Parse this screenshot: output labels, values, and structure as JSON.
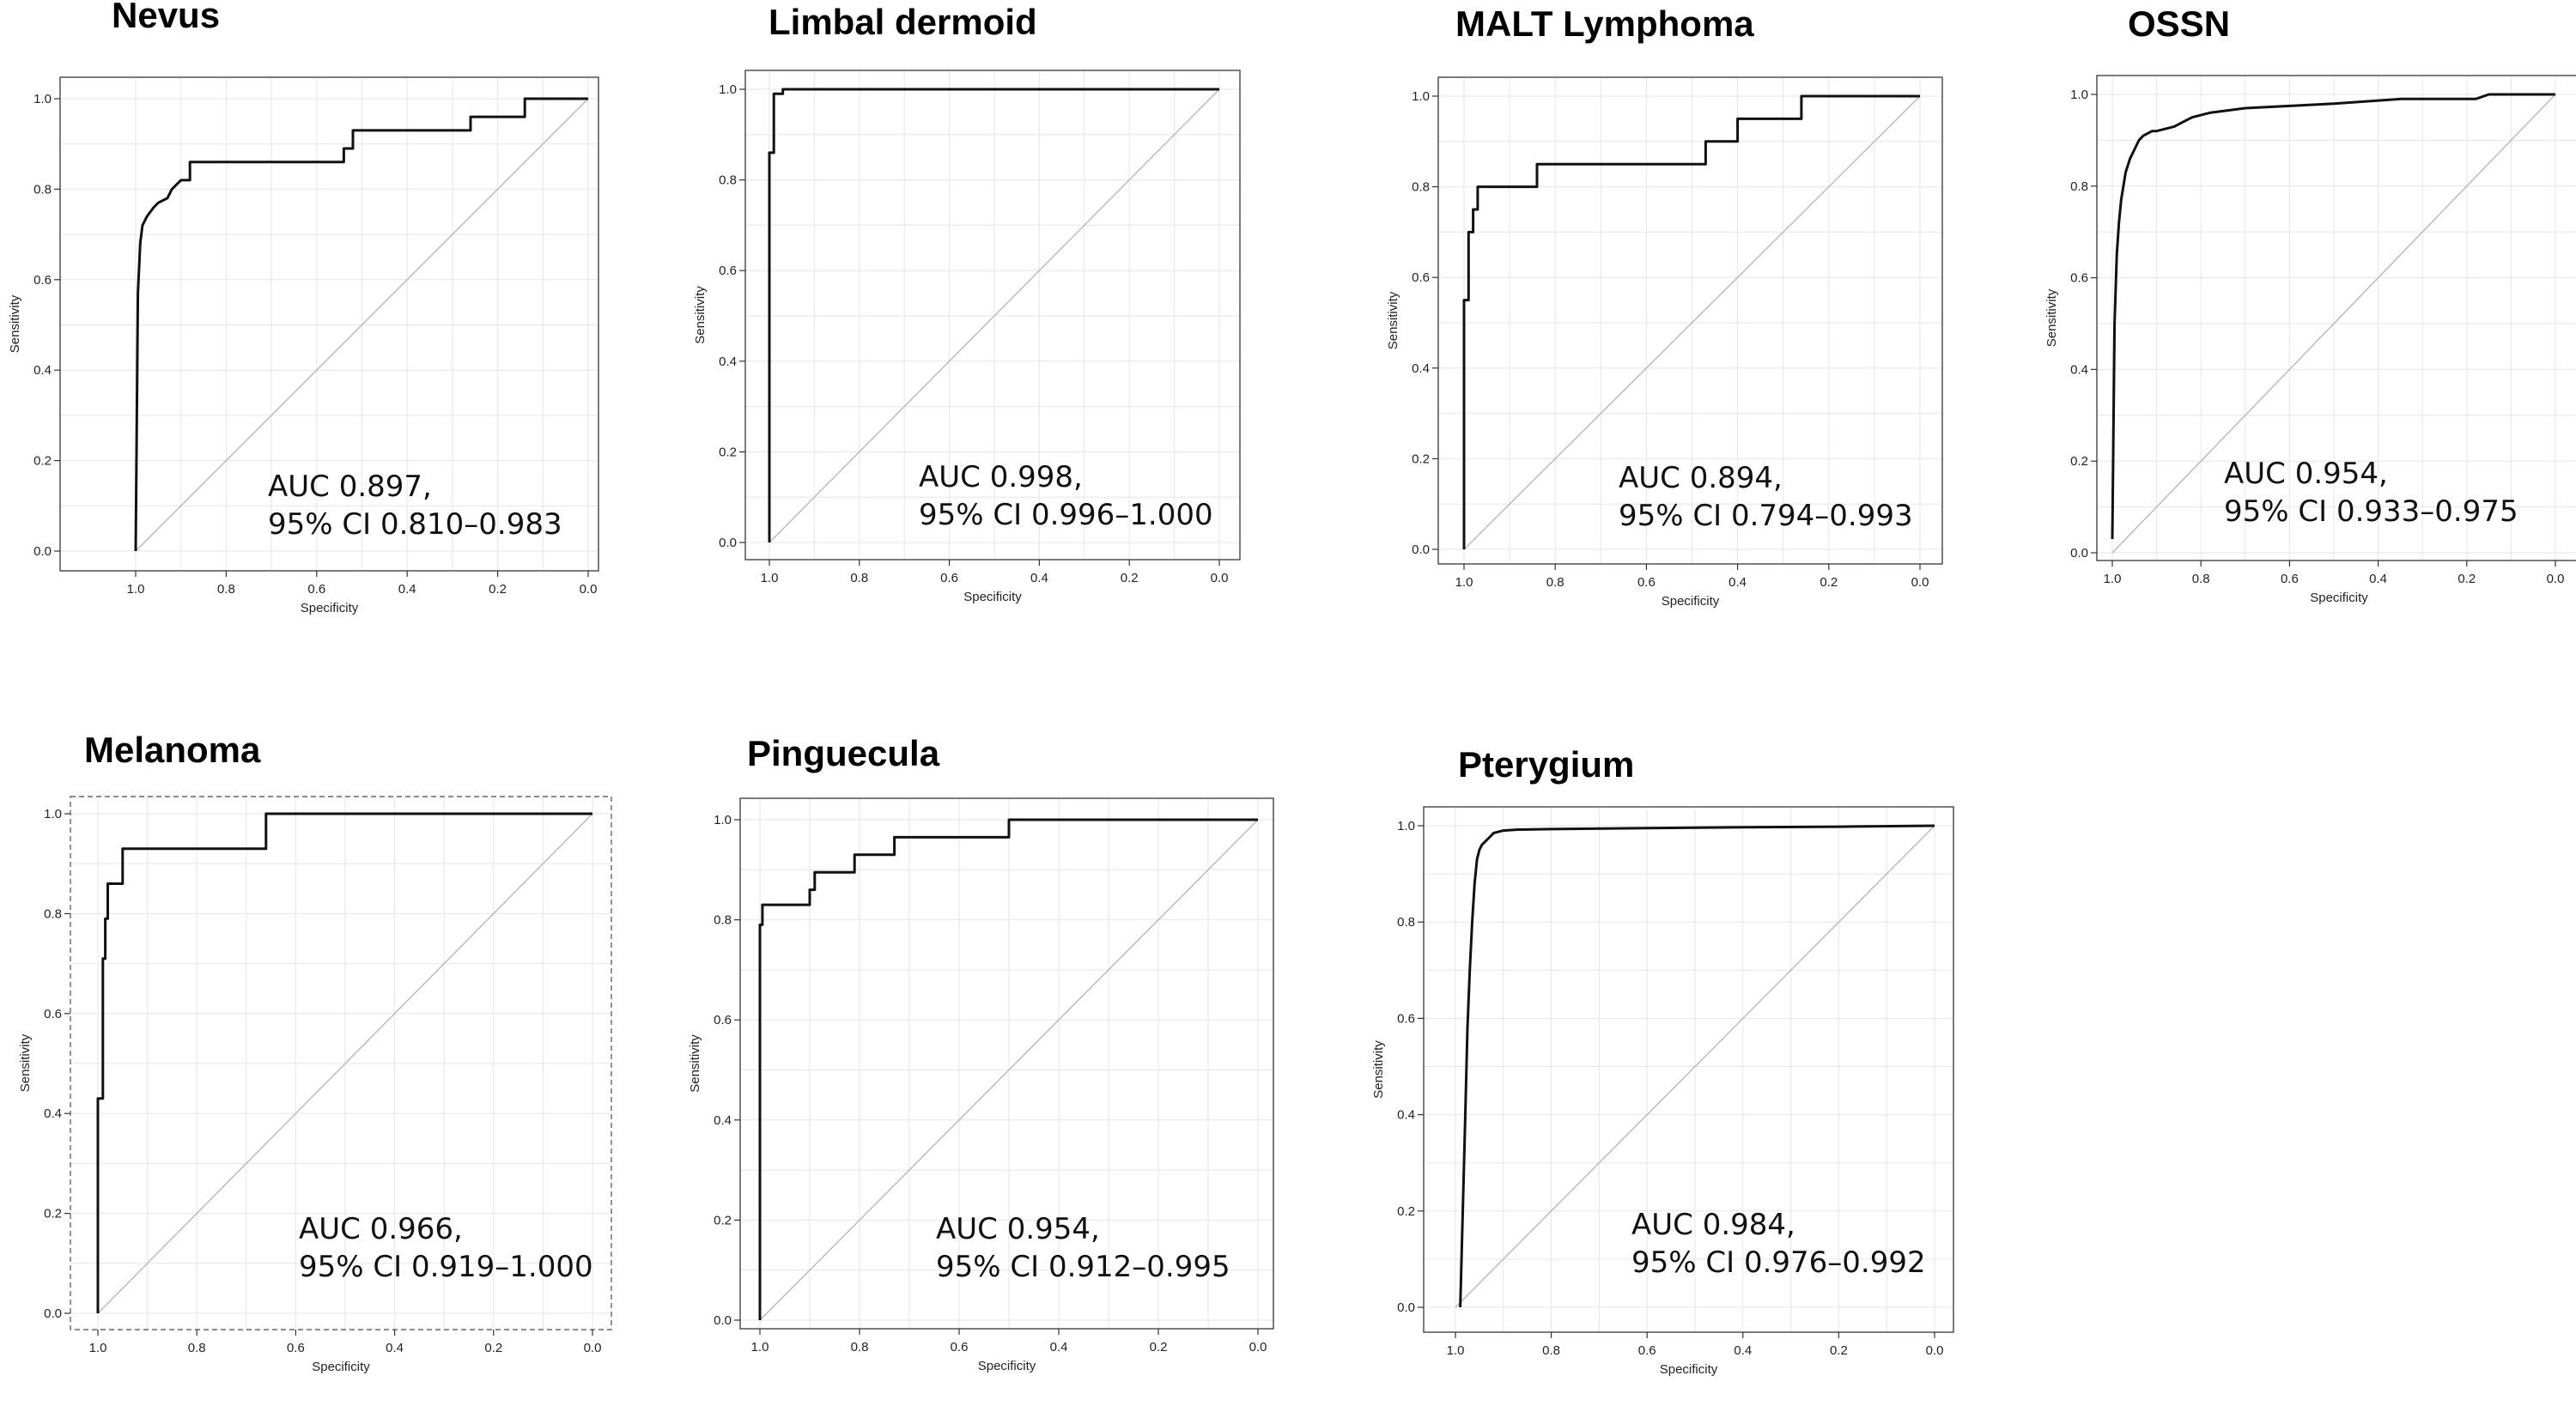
{
  "chart_data": [
    {
      "type": "line",
      "title": "Nevus",
      "xlabel": "Specificity",
      "ylabel": "Sensitivity",
      "xlim": [
        1.0,
        0.0
      ],
      "ylim": [
        0.0,
        1.0
      ],
      "x_ticks": [
        "1.0",
        "0.8",
        "0.6",
        "0.4",
        "0.2",
        "0.0"
      ],
      "y_ticks": [
        "0.0",
        "0.2",
        "0.4",
        "0.6",
        "0.8",
        "1.0"
      ],
      "annotation": [
        "AUC 0.897,",
        "95% CI 0.810–0.983"
      ],
      "grid": true,
      "series": [
        {
          "x": [
            1.0,
            0.995,
            0.99,
            0.985,
            0.975,
            0.96,
            0.95,
            0.93,
            0.92,
            0.9,
            0.88,
            0.88,
            0.54,
            0.54,
            0.52,
            0.52,
            0.26,
            0.26,
            0.14,
            0.14,
            0.0
          ],
          "y": [
            0.0,
            0.57,
            0.68,
            0.72,
            0.74,
            0.76,
            0.77,
            0.78,
            0.8,
            0.82,
            0.82,
            0.86,
            0.86,
            0.89,
            0.89,
            0.93,
            0.93,
            0.96,
            0.96,
            1.0,
            1.0
          ]
        }
      ],
      "diagonal": [
        [
          1.0,
          0.0
        ],
        [
          0.0,
          1.0
        ]
      ]
    },
    {
      "type": "line",
      "title": "Limbal dermoid",
      "xlabel": "Specificity",
      "ylabel": "Sensitivity",
      "xlim": [
        1.0,
        0.0
      ],
      "ylim": [
        0.0,
        1.0
      ],
      "x_ticks": [
        "1.0",
        "0.8",
        "0.6",
        "0.4",
        "0.2",
        "0.0"
      ],
      "y_ticks": [
        "0.0",
        "0.2",
        "0.4",
        "0.6",
        "0.8",
        "1.0"
      ],
      "annotation": [
        "AUC 0.998,",
        "95% CI 0.996–1.000"
      ],
      "grid": true,
      "series": [
        {
          "x": [
            1.0,
            1.0,
            0.99,
            0.99,
            0.97,
            0.97,
            0.0
          ],
          "y": [
            0.0,
            0.86,
            0.86,
            0.99,
            0.99,
            1.0,
            1.0
          ]
        }
      ],
      "diagonal": [
        [
          1.0,
          0.0
        ],
        [
          0.0,
          1.0
        ]
      ]
    },
    {
      "type": "line",
      "title": "MALT Lymphoma",
      "xlabel": "Specificity",
      "ylabel": "Sensitivity",
      "xlim": [
        1.0,
        0.0
      ],
      "ylim": [
        0.0,
        1.0
      ],
      "x_ticks": [
        "1.0",
        "0.8",
        "0.6",
        "0.4",
        "0.2",
        "0.0"
      ],
      "y_ticks": [
        "0.0",
        "0.2",
        "0.4",
        "0.6",
        "0.8",
        "1.0"
      ],
      "annotation": [
        "AUC 0.894,",
        "95% CI 0.794–0.993"
      ],
      "grid": true,
      "series": [
        {
          "x": [
            1.0,
            1.0,
            0.99,
            0.99,
            0.98,
            0.98,
            0.97,
            0.97,
            0.84,
            0.84,
            0.47,
            0.47,
            0.4,
            0.4,
            0.26,
            0.26,
            0.0
          ],
          "y": [
            0.0,
            0.55,
            0.55,
            0.7,
            0.7,
            0.75,
            0.75,
            0.8,
            0.8,
            0.85,
            0.85,
            0.9,
            0.9,
            0.95,
            0.95,
            1.0,
            1.0
          ]
        }
      ],
      "diagonal": [
        [
          1.0,
          0.0
        ],
        [
          0.0,
          1.0
        ]
      ]
    },
    {
      "type": "line",
      "title": "OSSN",
      "xlabel": "Specificity",
      "ylabel": "Sensitivity",
      "xlim": [
        1.0,
        0.0
      ],
      "ylim": [
        0.0,
        1.0
      ],
      "x_ticks": [
        "1.0",
        "0.8",
        "0.6",
        "0.4",
        "0.2",
        "0.0"
      ],
      "y_ticks": [
        "0.0",
        "0.2",
        "0.4",
        "0.6",
        "0.8",
        "1.0"
      ],
      "annotation": [
        "AUC 0.954,",
        "95% CI 0.933–0.975"
      ],
      "grid": true,
      "series": [
        {
          "x": [
            1.0,
            0.995,
            0.99,
            0.985,
            0.98,
            0.975,
            0.97,
            0.96,
            0.95,
            0.94,
            0.93,
            0.91,
            0.9,
            0.86,
            0.82,
            0.78,
            0.7,
            0.6,
            0.5,
            0.35,
            0.18,
            0.15,
            0.0
          ],
          "y": [
            0.03,
            0.5,
            0.65,
            0.72,
            0.77,
            0.8,
            0.83,
            0.86,
            0.88,
            0.9,
            0.91,
            0.92,
            0.92,
            0.93,
            0.95,
            0.96,
            0.97,
            0.975,
            0.98,
            0.99,
            0.99,
            1.0,
            1.0
          ]
        }
      ],
      "diagonal": [
        [
          1.0,
          0.0
        ],
        [
          0.0,
          1.0
        ]
      ]
    },
    {
      "type": "line",
      "title": "Melanoma",
      "xlabel": "Specificity",
      "ylabel": "Sensitivity",
      "xlim": [
        1.0,
        0.0
      ],
      "ylim": [
        0.0,
        1.0
      ],
      "x_ticks": [
        "1.0",
        "0.8",
        "0.6",
        "0.4",
        "0.2",
        "0.0"
      ],
      "y_ticks": [
        "0.0",
        "0.2",
        "0.4",
        "0.6",
        "0.8",
        "1.0"
      ],
      "annotation": [
        "AUC 0.966,",
        "95% CI 0.919–1.000"
      ],
      "grid": true,
      "series": [
        {
          "x": [
            1.0,
            1.0,
            0.99,
            0.99,
            0.985,
            0.985,
            0.98,
            0.98,
            0.95,
            0.95,
            0.66,
            0.66,
            0.0
          ],
          "y": [
            0.0,
            0.43,
            0.43,
            0.71,
            0.71,
            0.79,
            0.79,
            0.86,
            0.86,
            0.93,
            0.93,
            1.0,
            1.0
          ]
        }
      ],
      "diagonal": [
        [
          1.0,
          0.0
        ],
        [
          0.0,
          1.0
        ]
      ]
    },
    {
      "type": "line",
      "title": "Pinguecula",
      "xlabel": "Specificity",
      "ylabel": "Sensitivity",
      "xlim": [
        1.0,
        0.0
      ],
      "ylim": [
        0.0,
        1.0
      ],
      "x_ticks": [
        "1.0",
        "0.8",
        "0.6",
        "0.4",
        "0.2",
        "0.0"
      ],
      "y_ticks": [
        "0.0",
        "0.2",
        "0.4",
        "0.6",
        "0.8",
        "1.0"
      ],
      "annotation": [
        "AUC 0.954,",
        "95% CI 0.912–0.995"
      ],
      "grid": true,
      "series": [
        {
          "x": [
            1.0,
            1.0,
            0.995,
            0.995,
            0.99,
            0.99,
            0.9,
            0.9,
            0.89,
            0.89,
            0.81,
            0.81,
            0.73,
            0.73,
            0.5,
            0.5,
            0.0
          ],
          "y": [
            0.0,
            0.79,
            0.79,
            0.83,
            0.83,
            0.83,
            0.83,
            0.86,
            0.86,
            0.895,
            0.895,
            0.93,
            0.93,
            0.965,
            0.965,
            1.0,
            1.0
          ]
        }
      ],
      "diagonal": [
        [
          1.0,
          0.0
        ],
        [
          0.0,
          1.0
        ]
      ]
    },
    {
      "type": "line",
      "title": "Pterygium",
      "xlabel": "Specificity",
      "ylabel": "Sensitivity",
      "xlim": [
        1.0,
        0.0
      ],
      "ylim": [
        0.0,
        1.0
      ],
      "x_ticks": [
        "1.0",
        "0.8",
        "0.6",
        "0.4",
        "0.2",
        "0.0"
      ],
      "y_ticks": [
        "0.0",
        "0.2",
        "0.4",
        "0.6",
        "0.8",
        "1.0"
      ],
      "annotation": [
        "AUC 0.984,",
        "95% CI 0.976–0.992"
      ],
      "grid": true,
      "series": [
        {
          "x": [
            0.99,
            0.98,
            0.975,
            0.97,
            0.965,
            0.96,
            0.955,
            0.95,
            0.945,
            0.94,
            0.93,
            0.92,
            0.9,
            0.87,
            0.8,
            0.6,
            0.4,
            0.2,
            0.0
          ],
          "y": [
            0.0,
            0.38,
            0.58,
            0.7,
            0.8,
            0.88,
            0.93,
            0.95,
            0.96,
            0.965,
            0.975,
            0.985,
            0.99,
            0.992,
            0.993,
            0.995,
            0.997,
            0.998,
            1.0
          ]
        }
      ],
      "diagonal": [
        [
          1.0,
          0.0
        ],
        [
          0.0,
          1.0
        ]
      ]
    }
  ]
}
